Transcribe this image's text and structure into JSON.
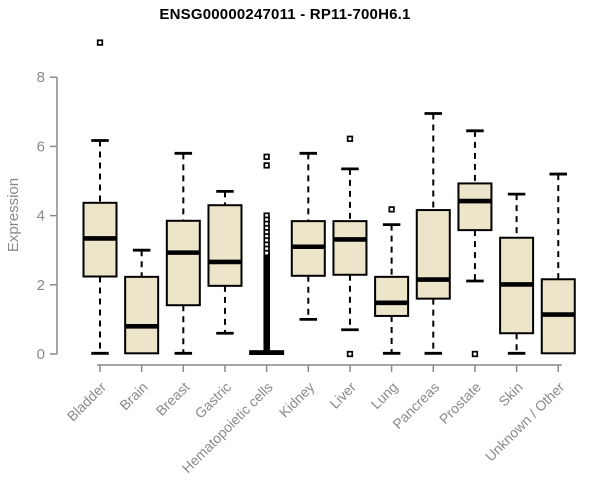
{
  "chart_data": {
    "type": "boxplot",
    "title": "ENSG00000247011 - RP11-700H6.1",
    "ylabel": "Expression",
    "xlabel": "",
    "ylim": [
      0,
      9.3
    ],
    "yticks": [
      0,
      2,
      4,
      6,
      8
    ],
    "grid": false,
    "legend": null,
    "categories": [
      "Bladder",
      "Brain",
      "Breast",
      "Gastric",
      "Hematopoietic cells",
      "Kidney",
      "Liver",
      "Lung",
      "Pancreas",
      "Prostate",
      "Skin",
      "Unknown / Other"
    ],
    "boxes": [
      {
        "category": "Bladder",
        "whisker_low": 0.02,
        "q1": 2.24,
        "median": 3.34,
        "q3": 4.37,
        "whisker_high": 6.17,
        "outliers": [
          9.0
        ]
      },
      {
        "category": "Brain",
        "whisker_low": 0.02,
        "q1": 0.02,
        "median": 0.8,
        "q3": 2.23,
        "whisker_high": 3.0,
        "outliers": []
      },
      {
        "category": "Breast",
        "whisker_low": 0.02,
        "q1": 1.41,
        "median": 2.93,
        "q3": 3.85,
        "whisker_high": 5.8,
        "outliers": []
      },
      {
        "category": "Gastric",
        "whisker_low": 0.6,
        "q1": 1.97,
        "median": 2.66,
        "q3": 4.3,
        "whisker_high": 4.7,
        "outliers": []
      },
      {
        "category": "Hematopoietic cells",
        "whisker_low": 0,
        "q1": 0,
        "median": 0.04,
        "q3": 0.08,
        "whisker_high": 0.08,
        "outliers": [
          5.7,
          5.45,
          4.0,
          3.88,
          3.76,
          3.64,
          3.52,
          3.4,
          3.28,
          3.16,
          3.04
        ],
        "outlier_band": {
          "from": 0.18,
          "to": 2.95,
          "step": 0.033
        }
      },
      {
        "category": "Kidney",
        "whisker_low": 1.0,
        "q1": 2.26,
        "median": 3.1,
        "q3": 3.84,
        "whisker_high": 5.8,
        "outliers": []
      },
      {
        "category": "Liver",
        "whisker_low": 0.7,
        "q1": 2.29,
        "median": 3.31,
        "q3": 3.84,
        "whisker_high": 5.35,
        "outliers": [
          6.22,
          0.0
        ]
      },
      {
        "category": "Lung",
        "whisker_low": 0.02,
        "q1": 1.1,
        "median": 1.48,
        "q3": 2.23,
        "whisker_high": 3.74,
        "outliers": [
          4.18
        ]
      },
      {
        "category": "Pancreas",
        "whisker_low": 0.02,
        "q1": 1.6,
        "median": 2.15,
        "q3": 4.16,
        "whisker_high": 6.95,
        "outliers": []
      },
      {
        "category": "Prostate",
        "whisker_low": 2.11,
        "q1": 3.58,
        "median": 4.42,
        "q3": 4.93,
        "whisker_high": 6.45,
        "outliers": [
          0.0
        ]
      },
      {
        "category": "Skin",
        "whisker_low": 0.02,
        "q1": 0.6,
        "median": 2.01,
        "q3": 3.36,
        "whisker_high": 4.62,
        "outliers": []
      },
      {
        "category": "Unknown / Other",
        "whisker_low": 0.02,
        "q1": 0.02,
        "median": 1.14,
        "q3": 2.16,
        "whisker_high": 5.2,
        "outliers": []
      }
    ],
    "colors": {
      "box_fill": "#ece5c9",
      "box_stroke": "#000000",
      "median": "#000000",
      "axis": "#8a8a8a",
      "title": "#000000",
      "background": "#ffffff"
    }
  }
}
